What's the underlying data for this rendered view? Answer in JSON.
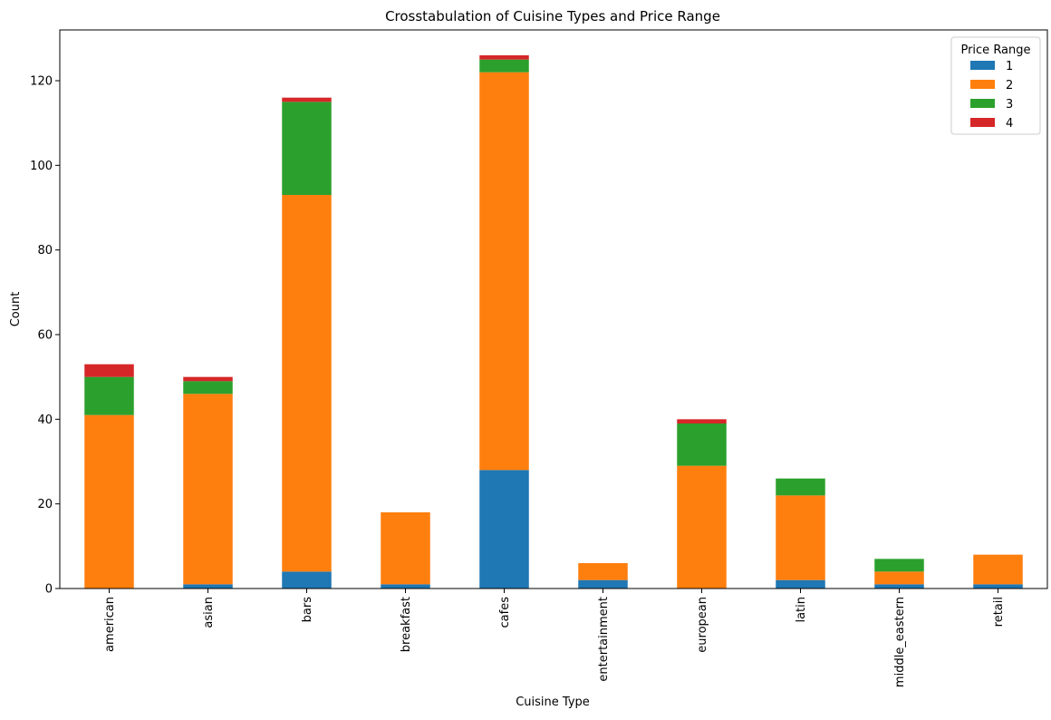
{
  "chart_data": {
    "type": "bar",
    "stacked": true,
    "title": "Crosstabulation of Cuisine Types and Price Range",
    "xlabel": "Cuisine Type",
    "ylabel": "Count",
    "ylim": [
      0,
      132
    ],
    "yticks": [
      0,
      20,
      40,
      60,
      80,
      100,
      120
    ],
    "grid": false,
    "legend": {
      "title": "Price Range",
      "placement": "top-right"
    },
    "categories": [
      "american",
      "asian",
      "bars",
      "breakfast",
      "cafes",
      "entertainment",
      "european",
      "latin",
      "middle_eastern",
      "retail"
    ],
    "series": [
      {
        "name": "1",
        "color": "#1f77b4",
        "values": [
          0,
          1,
          4,
          1,
          28,
          2,
          0,
          2,
          1,
          1
        ]
      },
      {
        "name": "2",
        "color": "#ff7f0e",
        "values": [
          41,
          45,
          89,
          17,
          94,
          4,
          29,
          20,
          3,
          7
        ]
      },
      {
        "name": "3",
        "color": "#2ca02c",
        "values": [
          9,
          3,
          22,
          0,
          3,
          0,
          10,
          4,
          3,
          0
        ]
      },
      {
        "name": "4",
        "color": "#d62728",
        "values": [
          3,
          1,
          1,
          0,
          1,
          0,
          1,
          0,
          0,
          0
        ]
      }
    ]
  }
}
